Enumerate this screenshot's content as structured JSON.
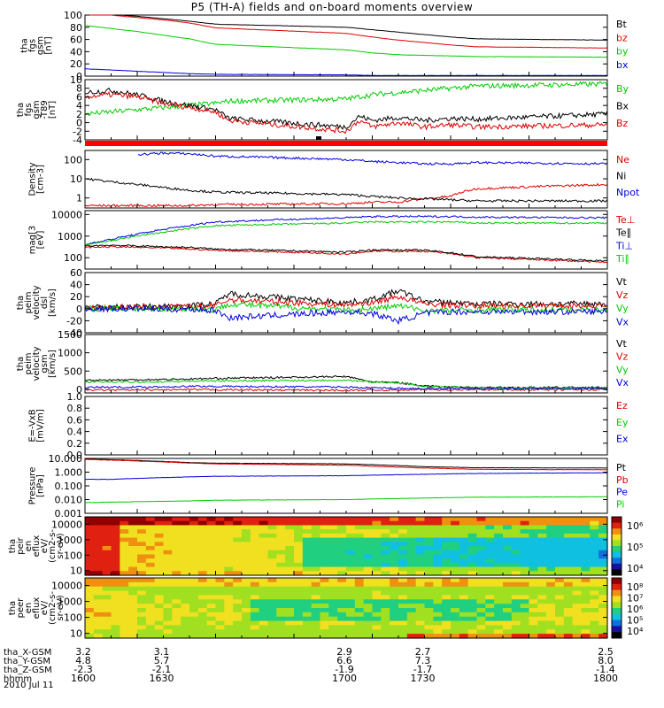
{
  "page_title": "P5 (TH-A) fields and on-board moments overview",
  "colors": {
    "black": "#000000",
    "red": "#dd0000",
    "green": "#00cc00",
    "blue": "#0000dd"
  },
  "chart_data": [
    {
      "type": "line",
      "id": "fgs",
      "ylabel": [
        "tha",
        "fgs",
        "gsm",
        "[nT]"
      ],
      "ylim": [
        0,
        100
      ],
      "y_ticks": [
        "0",
        "20",
        "40",
        "60",
        "80",
        "100"
      ],
      "x": [
        1600,
        1610,
        1620,
        1630,
        1640,
        1650,
        1700,
        1710,
        1720,
        1730,
        1740,
        1750,
        1800
      ],
      "series": [
        {
          "name": "Bt",
          "color": "#000000",
          "values": [
            104,
            101,
            98,
            94,
            90,
            85,
            80,
            76,
            72,
            68,
            64,
            61,
            59
          ]
        },
        {
          "name": "bz",
          "color": "#dd0000",
          "values": [
            104,
            100,
            96,
            92,
            87,
            79,
            70,
            64,
            59,
            55,
            51,
            48,
            46
          ]
        },
        {
          "name": "by",
          "color": "#00cc00",
          "values": [
            83,
            78,
            73,
            67,
            61,
            52,
            43,
            38,
            35,
            34,
            33,
            32,
            31
          ]
        },
        {
          "name": "bx",
          "color": "#0000dd",
          "values": [
            12,
            10,
            8,
            6,
            4,
            3,
            2,
            1,
            1,
            1,
            1,
            1,
            1
          ]
        }
      ],
      "series_labels_order": [
        "Bt",
        "bz",
        "by",
        "bx"
      ]
    },
    {
      "type": "line",
      "id": "t89",
      "ylabel": [
        "tha",
        "fgs",
        "gsm",
        "-T89",
        "[nT]"
      ],
      "ylim": [
        -4,
        10
      ],
      "y_ticks": [
        "-4",
        "-2",
        "0",
        "2",
        "4",
        "6",
        "8",
        "10"
      ],
      "x": [
        1600,
        1610,
        1620,
        1630,
        1640,
        1650,
        1655,
        1700,
        1705,
        1710,
        1720,
        1730,
        1740,
        1750,
        1800
      ],
      "series": [
        {
          "name": "By",
          "color": "#00cc00",
          "values": [
            2,
            2.5,
            3,
            3.5,
            4,
            4.5,
            5,
            5.5,
            6,
            6.5,
            7,
            7.5,
            8,
            8.5,
            9
          ]
        },
        {
          "name": "Bx",
          "color": "#000000",
          "values": [
            7,
            7.5,
            6.5,
            5,
            4,
            3,
            1,
            -1,
            1.5,
            0.5,
            1.2,
            0.5,
            1,
            0.8,
            2
          ]
        },
        {
          "name": "Bz",
          "color": "#dd0000",
          "values": [
            6,
            6.5,
            6,
            4.5,
            3.5,
            2.5,
            0.5,
            -2,
            0.5,
            -1,
            0,
            -1,
            -0.5,
            -1,
            -0.5
          ]
        }
      ]
    },
    {
      "type": "line",
      "id": "density",
      "ylabel": [
        "Density",
        "[cm-3]"
      ],
      "log": true,
      "ylim": [
        0.3,
        300
      ],
      "y_ticks": [
        "1",
        "10",
        "100"
      ],
      "x": [
        1600,
        1610,
        1620,
        1630,
        1640,
        1650,
        1700,
        1710,
        1720,
        1730,
        1740,
        1750,
        1800
      ],
      "series": [
        {
          "name": "Ne",
          "color": "#dd0000",
          "values": [
            0.4,
            0.4,
            0.4,
            0.4,
            0.4,
            0.45,
            0.5,
            0.6,
            0.6,
            0.9,
            1.2,
            3,
            5
          ]
        },
        {
          "name": "Ni",
          "color": "#000000",
          "values": [
            10,
            7,
            5,
            3.5,
            2.5,
            2,
            1.5,
            1.2,
            1,
            0.9,
            0.8,
            0.7,
            0.7
          ]
        },
        {
          "name": "Npot",
          "color": "#0000dd",
          "values": [
            null,
            null,
            180,
            220,
            200,
            150,
            100,
            80,
            70,
            60,
            60,
            70,
            60
          ]
        }
      ]
    },
    {
      "type": "line",
      "id": "temp",
      "ylabel": [
        "mag[3",
        "[eV]"
      ],
      "log": true,
      "ylim": [
        30,
        15000
      ],
      "y_ticks": [
        "100",
        "1000",
        "10000"
      ],
      "x": [
        1600,
        1610,
        1620,
        1630,
        1640,
        1650,
        1700,
        1710,
        1720,
        1730,
        1740,
        1750,
        1800
      ],
      "series": [
        {
          "name": "Te⊥",
          "color": "#dd0000",
          "values": [
            300,
            320,
            300,
            280,
            250,
            220,
            150,
            200,
            200,
            200,
            150,
            100,
            60
          ]
        },
        {
          "name": "Te∥",
          "color": "#000000",
          "values": [
            350,
            380,
            350,
            320,
            300,
            250,
            180,
            230,
            230,
            220,
            170,
            110,
            70
          ]
        },
        {
          "name": "Ti⊥",
          "color": "#0000dd",
          "values": [
            400,
            700,
            1200,
            2000,
            3000,
            4500,
            7000,
            8000,
            8000,
            8000,
            8000,
            7500,
            7000
          ]
        },
        {
          "name": "Ti∥",
          "color": "#00cc00",
          "values": [
            400,
            600,
            1000,
            1500,
            2200,
            3000,
            4000,
            4500,
            4500,
            4500,
            4500,
            4000,
            4000
          ]
        }
      ]
    },
    {
      "type": "line",
      "id": "vel_dsl",
      "ylabel": [
        "tha",
        "peim",
        "velocity",
        "dsl",
        "[km/s]"
      ],
      "ylim": [
        -40,
        60
      ],
      "y_ticks": [
        "-40",
        "-20",
        "0",
        "20",
        "40",
        "60"
      ],
      "x": [
        1600,
        1620,
        1640,
        1650,
        1655,
        1700,
        1710,
        1720,
        1730,
        1740,
        1750,
        1800
      ],
      "series": [
        {
          "name": "Vt",
          "color": "#000000",
          "values": [
            2,
            3,
            5,
            8,
            25,
            10,
            15,
            30,
            12,
            10,
            8,
            8
          ]
        },
        {
          "name": "Vz",
          "color": "#dd0000",
          "values": [
            1,
            2,
            3,
            5,
            15,
            6,
            10,
            20,
            8,
            6,
            5,
            5
          ]
        },
        {
          "name": "Vy",
          "color": "#00cc00",
          "values": [
            0,
            0,
            0,
            -2,
            8,
            -3,
            0,
            5,
            -3,
            -3,
            -2,
            -2
          ]
        },
        {
          "name": "Vx",
          "color": "#0000dd",
          "values": [
            0,
            0,
            -1,
            -3,
            -15,
            -5,
            -8,
            -20,
            -8,
            -5,
            -5,
            -5
          ]
        }
      ]
    },
    {
      "type": "line",
      "id": "vel_gsm",
      "ylabel": [
        "tha",
        "peim",
        "velocity",
        "gsm",
        "[km/s]"
      ],
      "ylim": [
        -100,
        1500
      ],
      "y_ticks": [
        "0",
        "500",
        "1000",
        "1500"
      ],
      "x": [
        1600,
        1620,
        1640,
        1650,
        1700,
        1710,
        1720,
        1730,
        1740,
        1750,
        1800
      ],
      "series": [
        {
          "name": "Vt",
          "color": "#000000",
          "values": [
            250,
            260,
            280,
            300,
            350,
            200,
            180,
            100,
            60,
            50,
            50
          ]
        },
        {
          "name": "Vz",
          "color": "#dd0000",
          "values": [
            -20,
            -20,
            -10,
            -10,
            -30,
            -20,
            -20,
            -10,
            -10,
            -10,
            -10
          ]
        },
        {
          "name": "Vy",
          "color": "#00cc00",
          "values": [
            200,
            200,
            220,
            230,
            250,
            200,
            180,
            80,
            60,
            40,
            40
          ]
        },
        {
          "name": "Vx",
          "color": "#0000dd",
          "values": [
            60,
            60,
            80,
            80,
            60,
            40,
            30,
            20,
            20,
            20,
            20
          ]
        }
      ]
    },
    {
      "type": "line",
      "id": "efield",
      "ylabel": [
        "E=-VxB",
        "[mV/m]"
      ],
      "ylim": [
        0,
        1
      ],
      "y_ticks": [
        "0.0",
        "0.2",
        "0.4",
        "0.6",
        "0.8",
        "1.0"
      ],
      "series": [
        {
          "name": "Ez",
          "color": "#dd0000",
          "values": []
        },
        {
          "name": "Ey",
          "color": "#00cc00",
          "values": []
        },
        {
          "name": "Ex",
          "color": "#0000dd",
          "values": []
        }
      ]
    },
    {
      "type": "line",
      "id": "pressure",
      "ylabel": [
        "Pressure",
        "[nPa]"
      ],
      "log": true,
      "ylim": [
        0.001,
        10
      ],
      "y_ticks": [
        "0.001",
        "0.010",
        "0.100",
        "1.000",
        "10.000"
      ],
      "x": [
        1600,
        1610,
        1620,
        1630,
        1640,
        1650,
        1700,
        1710,
        1720,
        1730,
        1740,
        1750,
        1800
      ],
      "series": [
        {
          "name": "Pt",
          "color": "#000000",
          "values": [
            9,
            8,
            7,
            6,
            5,
            4.5,
            4,
            3.5,
            3,
            2.5,
            2.3,
            2.1,
            2
          ]
        },
        {
          "name": "Pb",
          "color": "#dd0000",
          "values": [
            8.5,
            7.5,
            6.5,
            5.5,
            4.6,
            4,
            3.2,
            2.7,
            2.3,
            2,
            1.8,
            1.6,
            1.5
          ]
        },
        {
          "name": "Pe",
          "color": "#0000dd",
          "values": [
            0.3,
            0.3,
            0.35,
            0.4,
            0.45,
            0.5,
            0.55,
            0.6,
            0.65,
            0.7,
            0.75,
            0.8,
            0.9
          ]
        },
        {
          "name": "Pi",
          "color": "#00cc00",
          "values": [
            0.006,
            0.0065,
            0.007,
            0.0075,
            0.008,
            0.009,
            0.01,
            0.011,
            0.012,
            0.013,
            0.014,
            0.015,
            0.016
          ]
        }
      ]
    },
    {
      "type": "heatmap",
      "id": "peir",
      "ylabel": [
        "tha",
        "peir",
        "en",
        "eflux",
        "eV/",
        "(cm2-s-",
        "sr-eV)"
      ],
      "log": true,
      "ylim": [
        5,
        30000
      ],
      "y_ticks": [
        "10",
        "100",
        "1000",
        "10000"
      ],
      "colorbar_ticks": [
        "10⁶",
        "10⁵",
        "10⁴"
      ]
    },
    {
      "type": "heatmap",
      "id": "peer",
      "ylabel": [
        "tha",
        "peer",
        "en",
        "eflux",
        "eV/",
        "(cm2-s-",
        "sr-eV)"
      ],
      "log": true,
      "ylim": [
        5,
        30000
      ],
      "y_ticks": [
        "10",
        "100",
        "1000",
        "10000"
      ],
      "colorbar_ticks": [
        "10⁸",
        "10⁷",
        "10⁶",
        "10⁵",
        "10⁴"
      ]
    }
  ],
  "x_axis": {
    "rows": [
      {
        "label": "tha_X-GSM",
        "values": [
          "3.2",
          "3.1",
          "2.9",
          "2.7",
          "2.5"
        ]
      },
      {
        "label": "tha_Y-GSM",
        "values": [
          "4.8",
          "5.7",
          "6.6",
          "7.3",
          "8.0"
        ]
      },
      {
        "label": "tha_Z-GSM",
        "values": [
          "-2.3",
          "-2.1",
          "-1.9",
          "-1.7",
          "-1.4"
        ]
      },
      {
        "label": "hhmm",
        "values": [
          "1600",
          "1630",
          "1700",
          "1730",
          "1800"
        ]
      }
    ],
    "date": "2010 Jul 11"
  }
}
